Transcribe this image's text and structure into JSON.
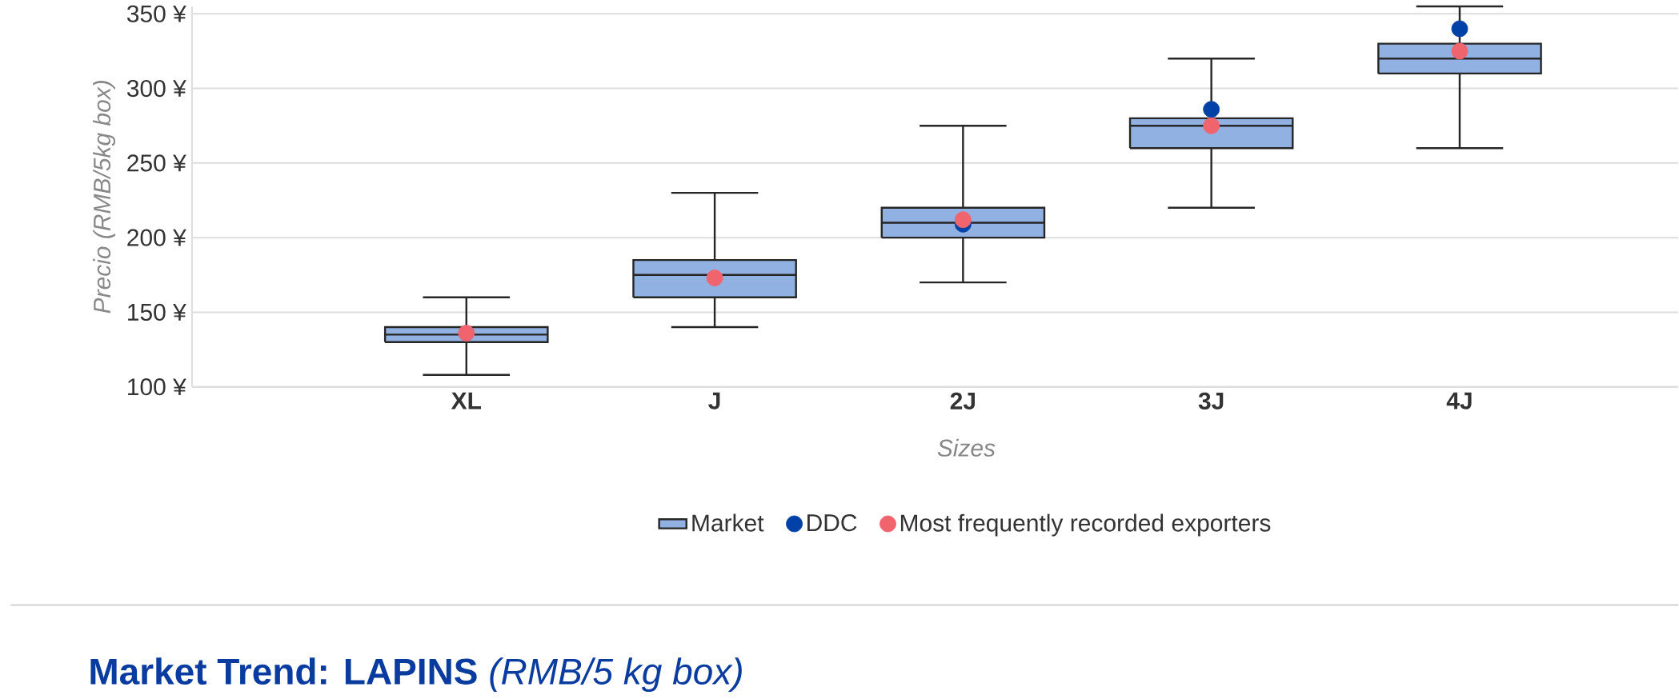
{
  "chart_data": {
    "type": "box",
    "xlabel": "Sizes",
    "ylabel": "Precio (RMB/5kg box)",
    "categories": [
      "XL",
      "J",
      "2J",
      "3J",
      "4J"
    ],
    "series": [
      {
        "name": "Market",
        "color": "#92b1e3",
        "boxes": [
          {
            "low": 108,
            "q1": 130,
            "median": 135,
            "q3": 140,
            "high": 160
          },
          {
            "low": 140,
            "q1": 160,
            "median": 175,
            "q3": 185,
            "high": 230
          },
          {
            "low": 170,
            "q1": 200,
            "median": 210,
            "q3": 220,
            "high": 275
          },
          {
            "low": 220,
            "q1": 260,
            "median": 275,
            "q3": 280,
            "high": 320
          },
          {
            "low": 260,
            "q1": 310,
            "median": 320,
            "q3": 330,
            "high": 355
          }
        ]
      },
      {
        "name": "DDC",
        "type": "scatter",
        "color": "#0041a8",
        "x": [
          "XL",
          "J",
          "2J",
          "3J",
          "4J"
        ],
        "values": [
          null,
          null,
          209,
          286,
          340
        ]
      },
      {
        "name": "Most frequently recorded exporters",
        "type": "scatter",
        "color": "#f0646e",
        "x": [
          "XL",
          "J",
          "2J",
          "3J",
          "4J"
        ],
        "values": [
          136,
          173,
          212,
          275,
          325
        ]
      }
    ],
    "ylim": [
      100,
      355
    ],
    "yticks": [
      {
        "value": 100,
        "label": "100 ¥"
      },
      {
        "value": 150,
        "label": "150 ¥"
      },
      {
        "value": 200,
        "label": "200 ¥"
      },
      {
        "value": 250,
        "label": "250 ¥"
      },
      {
        "value": 300,
        "label": "300 ¥"
      },
      {
        "value": 350,
        "label": "350 ¥"
      }
    ],
    "grid": "y",
    "legend": "bottom",
    "annotations": [
      "**Market Trend: LAPINS** *(RMB/5 kg box)*"
    ]
  }
}
